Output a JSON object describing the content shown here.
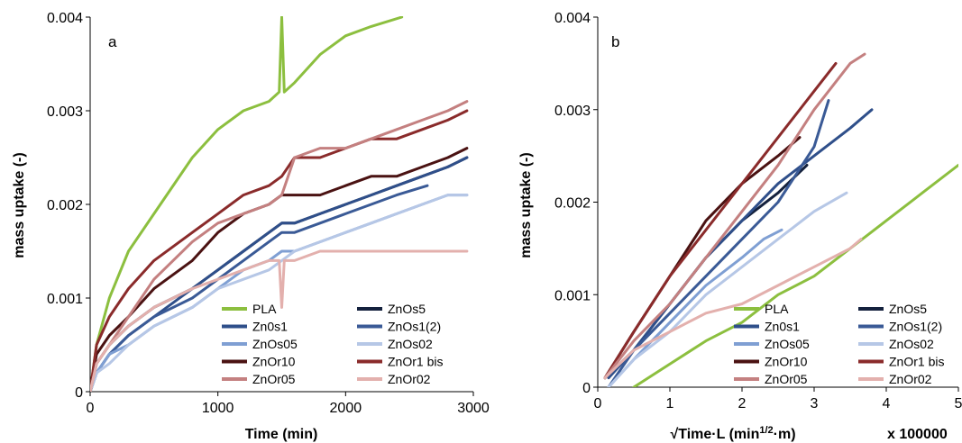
{
  "colors": {
    "PLA": "#8cbf3f",
    "ZnOs5": "#14213d",
    "Zn0s1": "#2f4f8a",
    "ZnOs1(2)": "#3a5a96",
    "ZnOs05": "#7f9fd3",
    "ZnOs02": "#b6c7e6",
    "ZnOr10": "#4a1212",
    "ZnOr1 bis": "#8a2b2b",
    "ZnOr05": "#c48080",
    "ZnOr02": "#e3b0ad"
  },
  "chart_data": [
    {
      "type": "line",
      "panel": "a",
      "xlabel": "Time (min)",
      "ylabel": "mass uptake (-)",
      "xlim": [
        0,
        3000
      ],
      "ylim": [
        0,
        0.004
      ],
      "xticks": [
        "0",
        "1000",
        "2000",
        "3000"
      ],
      "yticks": [
        "0",
        "0.001",
        "0.002",
        "0.003",
        "0.004"
      ],
      "legend": [
        "PLA",
        "Zn0s1",
        "ZnOs05",
        "ZnOr10",
        "ZnOr05",
        "ZnOs5",
        "ZnOs1(2)",
        "ZnOs02",
        "ZnOr1 bis",
        "ZnOr02"
      ],
      "legend_position": "bottom-right",
      "series": [
        {
          "name": "PLA",
          "x": [
            0,
            50,
            150,
            300,
            500,
            800,
            1000,
            1200,
            1400,
            1480,
            1500,
            1520,
            1600,
            1800,
            2000,
            2200,
            2440
          ],
          "y": [
            0,
            0.0005,
            0.001,
            0.0015,
            0.0019,
            0.0025,
            0.0028,
            0.003,
            0.0031,
            0.0032,
            0.004,
            0.0032,
            0.0033,
            0.0036,
            0.0038,
            0.0039,
            0.004
          ]
        },
        {
          "name": "ZnOs5",
          "x": [
            0,
            50,
            150,
            300,
            500,
            800,
            1000,
            1200,
            1400,
            1500,
            1600,
            1800,
            2000,
            2200,
            2400,
            2600,
            2800,
            2950
          ],
          "y": [
            0,
            0.0003,
            0.0005,
            0.0007,
            0.0009,
            0.0011,
            0.0013,
            0.0015,
            0.0017,
            0.0018,
            0.0018,
            0.0019,
            0.002,
            0.0021,
            0.0022,
            0.0023,
            0.0024,
            0.0025
          ]
        },
        {
          "name": "Zn0s1",
          "x": [
            0,
            50,
            150,
            300,
            500,
            800,
            1000,
            1200,
            1400,
            1500,
            1600,
            1800,
            2000,
            2200,
            2400,
            2600,
            2800,
            2950
          ],
          "y": [
            0,
            0.0002,
            0.0004,
            0.0006,
            0.0008,
            0.0011,
            0.0013,
            0.0015,
            0.0017,
            0.0018,
            0.0018,
            0.0019,
            0.002,
            0.0021,
            0.0022,
            0.0023,
            0.0024,
            0.0025
          ]
        },
        {
          "name": "ZnOs1(2)",
          "x": [
            0,
            50,
            150,
            300,
            500,
            800,
            1000,
            1200,
            1400,
            1500,
            1600,
            1800,
            2000,
            2200,
            2400,
            2640
          ],
          "y": [
            0,
            0.0002,
            0.0004,
            0.0006,
            0.0008,
            0.001,
            0.0012,
            0.0014,
            0.0016,
            0.0017,
            0.0017,
            0.0018,
            0.0019,
            0.002,
            0.0021,
            0.0022
          ]
        },
        {
          "name": "ZnOs05",
          "x": [
            0,
            50,
            150,
            300,
            500,
            800,
            1000,
            1200,
            1400,
            1500,
            1600,
            1800,
            2000,
            2200,
            2400,
            2600,
            2800,
            2950
          ],
          "y": [
            0,
            0.0002,
            0.0004,
            0.0005,
            0.0007,
            0.0009,
            0.0011,
            0.0013,
            0.0014,
            0.0015,
            0.0015,
            0.0016,
            0.0017,
            0.0018,
            0.0019,
            0.002,
            0.0021,
            0.0021
          ]
        },
        {
          "name": "ZnOs02",
          "x": [
            0,
            50,
            150,
            300,
            500,
            800,
            1000,
            1200,
            1400,
            1500,
            1600,
            1800,
            2000,
            2200,
            2400,
            2600,
            2800,
            2950
          ],
          "y": [
            0,
            0.0002,
            0.0003,
            0.0005,
            0.0007,
            0.0009,
            0.0011,
            0.0012,
            0.0013,
            0.0014,
            0.0015,
            0.0016,
            0.0017,
            0.0018,
            0.0019,
            0.002,
            0.0021,
            0.0021
          ]
        },
        {
          "name": "ZnOr10",
          "x": [
            0,
            50,
            150,
            300,
            500,
            800,
            1000,
            1200,
            1400,
            1500,
            1600,
            1800,
            2000,
            2200,
            2400,
            2600,
            2800,
            2950
          ],
          "y": [
            0,
            0.0004,
            0.0006,
            0.0008,
            0.0011,
            0.0014,
            0.0017,
            0.0019,
            0.002,
            0.0021,
            0.0021,
            0.0021,
            0.0022,
            0.0023,
            0.0023,
            0.0024,
            0.0025,
            0.0026
          ]
        },
        {
          "name": "ZnOr1 bis",
          "x": [
            0,
            50,
            150,
            300,
            500,
            800,
            1000,
            1200,
            1400,
            1500,
            1600,
            1800,
            2000,
            2200,
            2400,
            2600,
            2800,
            2950
          ],
          "y": [
            0,
            0.0005,
            0.0008,
            0.0011,
            0.0014,
            0.0017,
            0.0019,
            0.0021,
            0.0022,
            0.0023,
            0.0025,
            0.0025,
            0.0026,
            0.0027,
            0.0027,
            0.0028,
            0.0029,
            0.003
          ]
        },
        {
          "name": "ZnOr05",
          "x": [
            0,
            50,
            150,
            300,
            500,
            800,
            1000,
            1200,
            1400,
            1500,
            1600,
            1800,
            2000,
            2200,
            2400,
            2600,
            2800,
            2950
          ],
          "y": [
            0,
            0.0003,
            0.0005,
            0.0008,
            0.0012,
            0.0016,
            0.0018,
            0.0019,
            0.002,
            0.0021,
            0.0025,
            0.0026,
            0.0026,
            0.0027,
            0.0028,
            0.0029,
            0.003,
            0.0031
          ]
        },
        {
          "name": "ZnOr02",
          "x": [
            0,
            50,
            150,
            300,
            500,
            800,
            1000,
            1200,
            1400,
            1480,
            1500,
            1520,
            1600,
            1800,
            2000,
            2200,
            2400,
            2600,
            2800,
            2950
          ],
          "y": [
            0,
            0.0003,
            0.0005,
            0.0007,
            0.0009,
            0.0011,
            0.0012,
            0.0013,
            0.0014,
            0.0014,
            0.0009,
            0.0014,
            0.0014,
            0.0015,
            0.0015,
            0.0015,
            0.0015,
            0.0015,
            0.0015,
            0.0015
          ]
        }
      ]
    },
    {
      "type": "line",
      "panel": "b",
      "xlabel": "√Time·L (min",
      "xlabel_sup": "1/2",
      "xlabel_end": "·m)",
      "multiplier": "x 100000",
      "ylabel": "mass uptake (-)",
      "xlim": [
        0,
        5
      ],
      "ylim": [
        0,
        0.004
      ],
      "xticks": [
        "0",
        "1",
        "2",
        "3",
        "4",
        "5"
      ],
      "yticks": [
        "0",
        "0.001",
        "0.002",
        "0.003",
        "0.004"
      ],
      "legend": [
        "PLA",
        "Zn0s1",
        "ZnOs05",
        "ZnOr10",
        "ZnOr05",
        "ZnOs5",
        "ZnOs1(2)",
        "ZnOs02",
        "ZnOr1 bis",
        "ZnOr02"
      ],
      "legend_position": "bottom-right",
      "series": [
        {
          "name": "PLA",
          "x": [
            0.5,
            1,
            1.5,
            2,
            2.5,
            3,
            3.5,
            4,
            4.5,
            5
          ],
          "y": [
            0,
            0.00025,
            0.0005,
            0.0007,
            0.001,
            0.0012,
            0.0015,
            0.0018,
            0.0021,
            0.0024
          ]
        },
        {
          "name": "ZnOs5",
          "x": [
            0.1,
            0.5,
            1,
            1.5,
            2,
            2.5,
            2.9
          ],
          "y": [
            0.0001,
            0.0004,
            0.0009,
            0.0014,
            0.0018,
            0.0021,
            0.0024
          ]
        },
        {
          "name": "Zn0s1",
          "x": [
            0.15,
            0.5,
            1,
            1.5,
            2,
            2.5,
            3,
            3.5,
            3.8
          ],
          "y": [
            0.0001,
            0.0004,
            0.0009,
            0.0014,
            0.0018,
            0.0022,
            0.0025,
            0.0028,
            0.003
          ]
        },
        {
          "name": "ZnOs1(2)",
          "x": [
            0.15,
            0.5,
            1,
            1.5,
            2,
            2.5,
            3,
            3.2
          ],
          "y": [
            0,
            0.0004,
            0.0008,
            0.0012,
            0.0016,
            0.002,
            0.0026,
            0.0031
          ]
        },
        {
          "name": "ZnOs05",
          "x": [
            0.15,
            0.5,
            1,
            1.5,
            2,
            2.3,
            2.55
          ],
          "y": [
            0,
            0.0003,
            0.0007,
            0.0011,
            0.0014,
            0.0016,
            0.0017
          ]
        },
        {
          "name": "ZnOs02",
          "x": [
            0.15,
            0.5,
            1,
            1.5,
            2,
            2.5,
            3,
            3.45
          ],
          "y": [
            0,
            0.0003,
            0.0006,
            0.001,
            0.0013,
            0.0016,
            0.0019,
            0.0021
          ]
        },
        {
          "name": "ZnOr10",
          "x": [
            0.1,
            0.5,
            1,
            1.5,
            2,
            2.5,
            2.8
          ],
          "y": [
            0.0001,
            0.0006,
            0.0012,
            0.0018,
            0.0022,
            0.0025,
            0.0027
          ]
        },
        {
          "name": "ZnOr1 bis",
          "x": [
            0.1,
            0.5,
            1,
            1.5,
            2,
            2.5,
            3,
            3.3
          ],
          "y": [
            0.0001,
            0.0006,
            0.0012,
            0.0017,
            0.0022,
            0.0027,
            0.0032,
            0.0035
          ]
        },
        {
          "name": "ZnOr05",
          "x": [
            0.1,
            0.5,
            1,
            1.5,
            2,
            2.5,
            3,
            3.5,
            3.7
          ],
          "y": [
            0.0001,
            0.0005,
            0.0009,
            0.0014,
            0.0019,
            0.0024,
            0.003,
            0.0035,
            0.0036
          ]
        },
        {
          "name": "ZnOr02",
          "x": [
            0.1,
            0.5,
            1,
            1.5,
            2,
            2.5,
            3,
            3.5,
            3.65
          ],
          "y": [
            0.0001,
            0.0004,
            0.0006,
            0.0008,
            0.0009,
            0.0011,
            0.0013,
            0.0015,
            0.0016
          ]
        }
      ]
    }
  ]
}
